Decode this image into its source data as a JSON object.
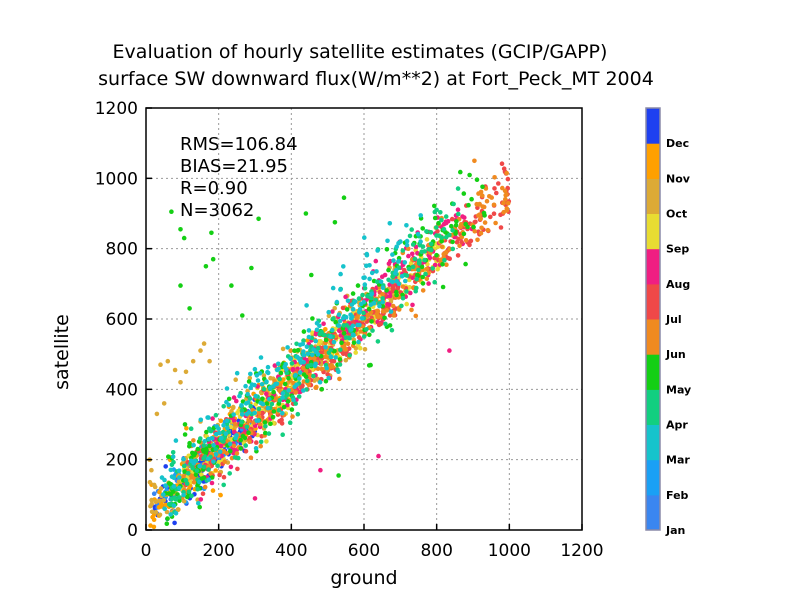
{
  "chart_data": {
    "type": "scatter",
    "title_line1": "Evaluation of hourly satellite estimates (GCIP/GAPP)",
    "title_line2": "surface SW downward flux(W/m**2) at Fort_Peck_MT 2004",
    "xlabel": "ground",
    "ylabel": "satellite",
    "xlim": [
      0,
      1200
    ],
    "ylim": [
      0,
      1200
    ],
    "xticks": [
      "0",
      "200",
      "400",
      "600",
      "800",
      "1000",
      "1200"
    ],
    "yticks": [
      "0",
      "200",
      "400",
      "600",
      "800",
      "1000",
      "1200"
    ],
    "grid": true,
    "stats": {
      "rms": "RMS=106.84",
      "bias": "BIAS=21.95",
      "r": "R=0.90",
      "n": "N=3062"
    },
    "legend_placement": "right",
    "months": [
      {
        "label": "Jan",
        "color": "#3a86f0"
      },
      {
        "label": "Feb",
        "color": "#1aa0f5"
      },
      {
        "label": "Mar",
        "color": "#16c3cc"
      },
      {
        "label": "Apr",
        "color": "#12cf80"
      },
      {
        "label": "May",
        "color": "#14cf14"
      },
      {
        "label": "Jun",
        "color": "#f08a20"
      },
      {
        "label": "Jul",
        "color": "#f04848"
      },
      {
        "label": "Aug",
        "color": "#f01e82"
      },
      {
        "label": "Sep",
        "color": "#e8dc32"
      },
      {
        "label": "Oct",
        "color": "#dcaa36"
      },
      {
        "label": "Nov",
        "color": "#ffa000"
      },
      {
        "label": "Dec",
        "color": "#1e40f0"
      }
    ],
    "clusters": [
      {
        "month": "Dec",
        "xrange": [
          20,
          300
        ],
        "slope": 0.95,
        "intercept": 30,
        "spread": 30,
        "count": 160
      },
      {
        "month": "Jan",
        "xrange": [
          20,
          200
        ],
        "slope": 1.0,
        "intercept": 60,
        "spread": 25,
        "count": 30
      },
      {
        "month": "Feb",
        "xrange": [
          40,
          320
        ],
        "slope": 0.95,
        "intercept": 40,
        "spread": 35,
        "count": 40
      },
      {
        "month": "Nov",
        "xrange": [
          10,
          560
        ],
        "slope": 0.95,
        "intercept": 40,
        "spread": 40,
        "count": 160
      },
      {
        "month": "Oct",
        "xrange": [
          10,
          700
        ],
        "slope": 0.95,
        "intercept": 50,
        "spread": 45,
        "count": 220
      },
      {
        "month": "Sep",
        "xrange": [
          100,
          820
        ],
        "slope": 0.95,
        "intercept": 40,
        "spread": 35,
        "count": 240
      },
      {
        "month": "Aug",
        "xrange": [
          150,
          900
        ],
        "slope": 0.98,
        "intercept": 30,
        "spread": 40,
        "count": 260
      },
      {
        "month": "Jul",
        "xrange": [
          100,
          1000
        ],
        "slope": 0.96,
        "intercept": 20,
        "spread": 35,
        "count": 240
      },
      {
        "month": "Jun",
        "xrange": [
          100,
          1000
        ],
        "slope": 0.95,
        "intercept": 20,
        "spread": 40,
        "count": 260
      },
      {
        "month": "May",
        "xrange": [
          50,
          940
        ],
        "slope": 0.95,
        "intercept": 50,
        "spread": 60,
        "count": 220
      },
      {
        "month": "Apr",
        "xrange": [
          50,
          860
        ],
        "slope": 0.95,
        "intercept": 50,
        "spread": 55,
        "count": 220
      },
      {
        "month": "Mar",
        "xrange": [
          40,
          760
        ],
        "slope": 1.0,
        "intercept": 70,
        "spread": 55,
        "count": 220
      }
    ],
    "outliers": [
      {
        "month": "May",
        "points": [
          [
            70,
            905
          ],
          [
            95,
            855
          ],
          [
            105,
            830
          ],
          [
            180,
            845
          ],
          [
            310,
            885
          ],
          [
            440,
            900
          ],
          [
            520,
            875
          ],
          [
            545,
            945
          ],
          [
            265,
            610
          ],
          [
            235,
            695
          ],
          [
            185,
            770
          ],
          [
            290,
            745
          ],
          [
            95,
            695
          ],
          [
            120,
            630
          ],
          [
            165,
            750
          ],
          [
            530,
            155
          ],
          [
            455,
            725
          ]
        ]
      },
      {
        "month": "Oct",
        "points": [
          [
            40,
            470
          ],
          [
            60,
            480
          ],
          [
            80,
            455
          ],
          [
            95,
            420
          ],
          [
            110,
            450
          ],
          [
            130,
            480
          ],
          [
            150,
            510
          ],
          [
            160,
            530
          ],
          [
            175,
            480
          ],
          [
            30,
            330
          ],
          [
            50,
            360
          ],
          [
            10,
            200
          ],
          [
            15,
            170
          ]
        ]
      },
      {
        "month": "Aug",
        "points": [
          [
            640,
            210
          ],
          [
            835,
            510
          ],
          [
            480,
            170
          ],
          [
            300,
            90
          ]
        ]
      }
    ]
  }
}
